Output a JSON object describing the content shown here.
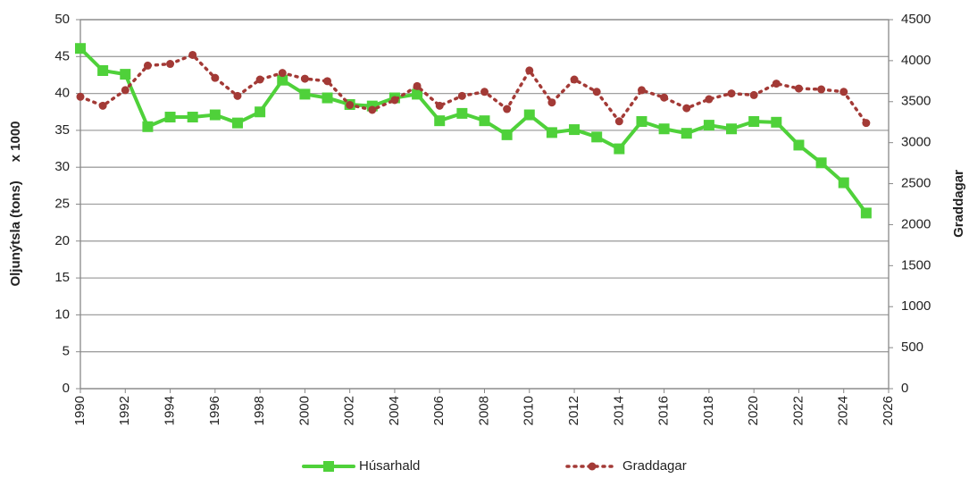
{
  "chart_data": {
    "type": "line",
    "y_label": "Oljunýtsla (tons)     x 1000",
    "y2_label": "Graddagar",
    "x": [
      1990,
      1991,
      1992,
      1993,
      1994,
      1995,
      1996,
      1997,
      1998,
      1999,
      2000,
      2001,
      2002,
      2003,
      2004,
      2005,
      2006,
      2007,
      2008,
      2009,
      2010,
      2011,
      2012,
      2013,
      2014,
      2015,
      2016,
      2017,
      2018,
      2019,
      2020,
      2021,
      2022,
      2023,
      2024,
      2025
    ],
    "series": [
      {
        "name": "Húsarhald",
        "color": "#4fd13a",
        "values": [
          46.1,
          43.1,
          42.6,
          35.5,
          36.8,
          36.8,
          37.1,
          36.0,
          37.5,
          41.8,
          39.9,
          39.4,
          38.5,
          38.3,
          39.4,
          39.9,
          36.3,
          37.3,
          36.3,
          34.4,
          37.1,
          34.7,
          35.1,
          34.1,
          32.5,
          36.2,
          35.2,
          34.6,
          35.7,
          35.2,
          36.2,
          36.1,
          33.0,
          30.6,
          27.9,
          23.8
        ]
      },
      {
        "name": "Graddagar",
        "color": "#a33a36",
        "axis": "y2",
        "values": [
          3560,
          3450,
          3640,
          3940,
          3960,
          4070,
          3790,
          3570,
          3770,
          3850,
          3780,
          3750,
          3460,
          3400,
          3520,
          3690,
          3450,
          3570,
          3620,
          3410,
          3880,
          3490,
          3770,
          3620,
          3260,
          3640,
          3550,
          3420,
          3530,
          3600,
          3580,
          3720,
          3660,
          3650,
          3620,
          3240
        ]
      }
    ],
    "xlim": [
      1990,
      2026
    ],
    "xticks": [
      1990,
      1992,
      1994,
      1996,
      1998,
      2000,
      2002,
      2004,
      2006,
      2008,
      2010,
      2012,
      2014,
      2016,
      2018,
      2020,
      2022,
      2024,
      2026
    ],
    "ylim": [
      0,
      50
    ],
    "yticks": [
      0,
      5,
      10,
      15,
      20,
      25,
      30,
      35,
      40,
      45,
      50
    ],
    "y2lim": [
      0,
      4500
    ],
    "y2ticks": [
      0,
      500,
      1000,
      1500,
      2000,
      2500,
      3000,
      3500,
      4000,
      4500
    ],
    "grid": true,
    "legend": "bottom"
  }
}
